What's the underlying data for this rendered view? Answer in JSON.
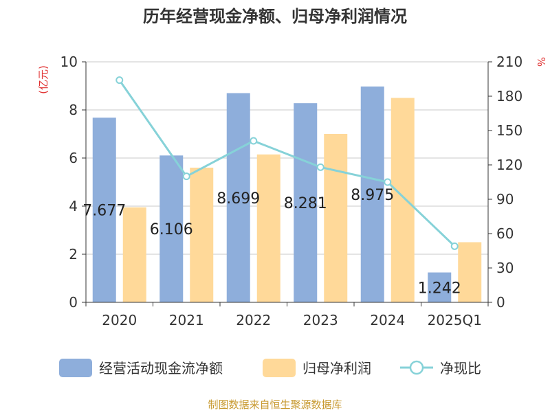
{
  "chart_data": {
    "type": "bar",
    "title": "历年经营现金净额、归母净利润情况",
    "categories": [
      "2020",
      "2021",
      "2022",
      "2023",
      "2024",
      "2025Q1"
    ],
    "y_left": {
      "unit_label": "(亿元)",
      "range": [
        0,
        10
      ],
      "ticks": [
        0,
        2,
        4,
        6,
        8,
        10
      ]
    },
    "y_right": {
      "unit_label": "%",
      "range": [
        0,
        210
      ],
      "ticks": [
        0,
        30,
        60,
        90,
        120,
        150,
        180,
        210
      ]
    },
    "series": [
      {
        "name": "经营活动现金流净额",
        "type": "bar",
        "axis": "left",
        "color": "#8eaedb",
        "values": [
          7.677,
          6.106,
          8.699,
          8.281,
          8.975,
          1.242
        ],
        "labels": [
          "7.677",
          "6.106",
          "8.699",
          "8.281",
          "8.975",
          "1.242"
        ]
      },
      {
        "name": "归母净利润",
        "type": "bar",
        "axis": "left",
        "color": "#ffd999",
        "values": [
          3.95,
          5.6,
          6.15,
          7.0,
          8.5,
          2.5
        ]
      },
      {
        "name": "净现比",
        "type": "line",
        "axis": "right",
        "color": "#86d2d8",
        "values": [
          194,
          110,
          141,
          118,
          105,
          49
        ]
      }
    ],
    "grid": true,
    "legend_position": "bottom"
  },
  "footer": {
    "source": "制图数据来自恒生聚源数据库"
  }
}
